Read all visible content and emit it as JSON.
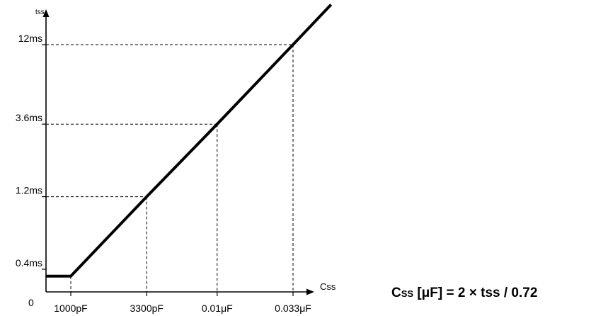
{
  "chart_data": {
    "type": "line",
    "ylabel": "tss",
    "xlabel": "Css",
    "origin_label": "0",
    "x_scale": "log",
    "y_scale": "log",
    "x_ticks": [
      {
        "label": "1000pF",
        "value": 0.001
      },
      {
        "label": "3300pF",
        "value": 0.0033
      },
      {
        "label": "0.01μF",
        "value": 0.01
      },
      {
        "label": "0.033μF",
        "value": 0.033
      }
    ],
    "y_ticks": [
      {
        "label": "0.4ms",
        "value": 0.4
      },
      {
        "label": "1.2ms",
        "value": 1.2
      },
      {
        "label": "3.6ms",
        "value": 3.6
      },
      {
        "label": "12ms",
        "value": 12
      }
    ],
    "series": [
      {
        "x": [
          1e-05,
          0.001,
          0.0033,
          0.01,
          0.033,
          0.06
        ],
        "y": [
          0.36,
          0.36,
          1.2,
          3.6,
          12,
          22
        ]
      }
    ],
    "guides": [
      {
        "x": 0.0033,
        "y": 1.2
      },
      {
        "x": 0.01,
        "y": 3.6
      },
      {
        "x": 0.033,
        "y": 12
      }
    ]
  },
  "formula": {
    "prefix": "C",
    "subscript": "SS",
    "rest": " [μF] = 2 × tss / 0.72"
  },
  "colors": {
    "line": "#000000",
    "axis": "#000000"
  }
}
